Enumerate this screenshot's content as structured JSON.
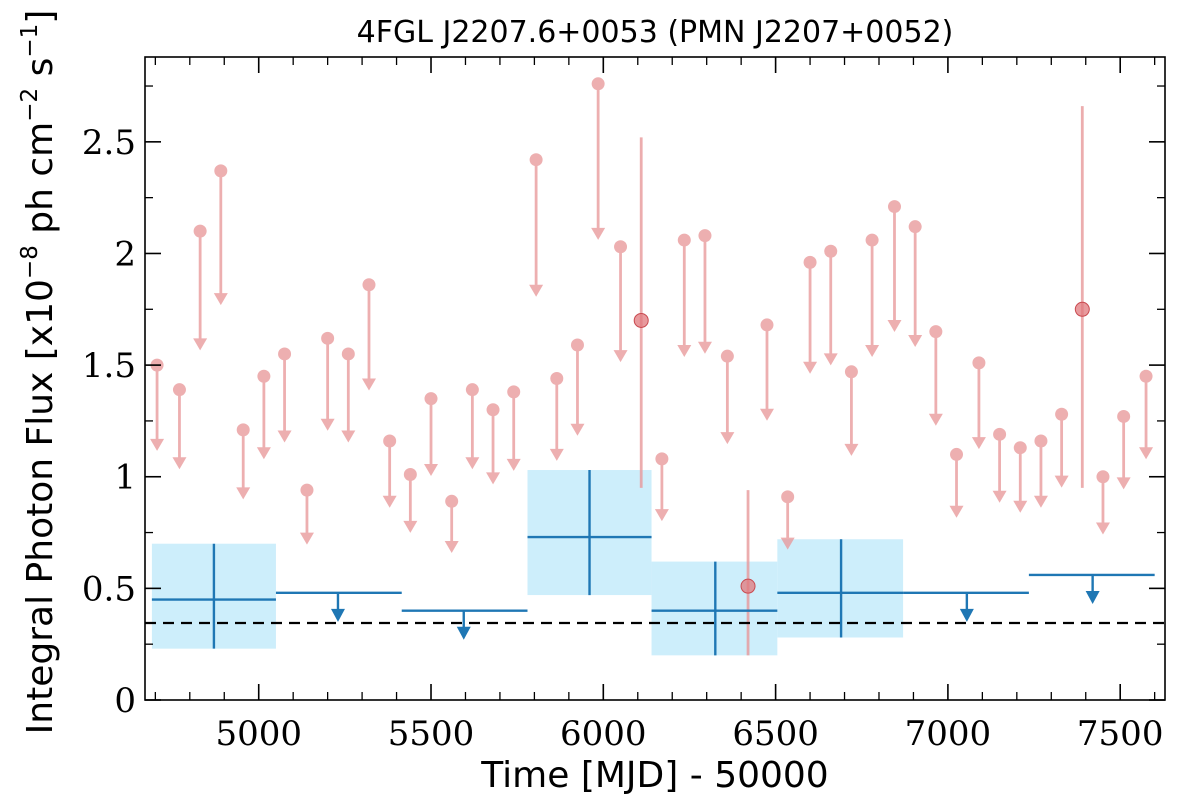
{
  "chart_data": {
    "type": "scatter",
    "title": "4FGL J2207.6+0053 (PMN J2207+0052)",
    "xlabel": "Time [MJD] - 50000",
    "ylabel": "Integral Photon Flux [x10",
    "ylabel_unit_exponent": "−8",
    "ylabel_unit_middle": " ph cm",
    "ylabel_unit_exponent2": "−2",
    "ylabel_unit_s": " s",
    "ylabel_unit_exponent3": "−1",
    "ylabel_unit_close": "]",
    "xlim": [
      4670,
      7630
    ],
    "ylim": [
      0,
      2.88
    ],
    "x_ticks": [
      "5000",
      "5500",
      "6000",
      "6500",
      "7000",
      "7500"
    ],
    "x_tick_values": [
      5000,
      5500,
      6000,
      6500,
      7000,
      7500
    ],
    "y_ticks": [
      "0",
      "0.5",
      "1",
      "1.5",
      "2",
      "2.5"
    ],
    "y_tick_values": [
      0,
      0.5,
      1,
      1.5,
      2,
      2.5
    ],
    "reference_line": {
      "y": 0.345,
      "style": "dashed",
      "color": "#000000"
    },
    "colors": {
      "fine": "#e8999b",
      "coarse": "#1f77b4",
      "band": "#cdeefb"
    },
    "fine_bins": {
      "upper_limits": [
        [
          4705,
          1.5
        ],
        [
          4770,
          1.39
        ],
        [
          4830,
          2.1
        ],
        [
          4890,
          2.37
        ],
        [
          4955,
          1.21
        ],
        [
          5015,
          1.45
        ],
        [
          5075,
          1.55
        ],
        [
          5140,
          0.94
        ],
        [
          5200,
          1.62
        ],
        [
          5260,
          1.55
        ],
        [
          5320,
          1.86
        ],
        [
          5380,
          1.16
        ],
        [
          5440,
          1.01
        ],
        [
          5500,
          1.35
        ],
        [
          5560,
          0.89
        ],
        [
          5620,
          1.39
        ],
        [
          5680,
          1.3
        ],
        [
          5740,
          1.38
        ],
        [
          5805,
          2.42
        ],
        [
          5865,
          1.44
        ],
        [
          5925,
          1.59
        ],
        [
          5985,
          2.76
        ],
        [
          6050,
          2.03
        ],
        [
          6170,
          1.08
        ],
        [
          6235,
          2.06
        ],
        [
          6295,
          2.08
        ],
        [
          6360,
          1.54
        ],
        [
          6475,
          1.68
        ],
        [
          6535,
          0.91
        ],
        [
          6600,
          1.96
        ],
        [
          6660,
          2.01
        ],
        [
          6720,
          1.47
        ],
        [
          6780,
          2.06
        ],
        [
          6845,
          2.21
        ],
        [
          6905,
          2.12
        ],
        [
          6965,
          1.65
        ],
        [
          7025,
          1.1
        ],
        [
          7090,
          1.51
        ],
        [
          7150,
          1.19
        ],
        [
          7210,
          1.13
        ],
        [
          7270,
          1.16
        ],
        [
          7330,
          1.28
        ],
        [
          7450,
          1.0
        ],
        [
          7510,
          1.27
        ],
        [
          7575,
          1.45
        ]
      ],
      "detections": [
        {
          "x": 6110,
          "y": 1.7,
          "ylo": 0.95,
          "yhi": 2.52
        },
        {
          "x": 6420,
          "y": 0.51,
          "ylo": 0.2,
          "yhi": 0.94
        },
        {
          "x": 7390,
          "y": 1.75,
          "ylo": 0.95,
          "yhi": 2.66
        }
      ]
    },
    "coarse_bins": {
      "detections": [
        {
          "x": 4870,
          "xlo": 4690,
          "xhi": 5050,
          "y": 0.45,
          "ylo": 0.23,
          "yhi": 0.7
        },
        {
          "x": 5960,
          "xlo": 5780,
          "xhi": 6140,
          "y": 0.73,
          "ylo": 0.47,
          "yhi": 1.03
        },
        {
          "x": 6325,
          "xlo": 6140,
          "xhi": 6505,
          "y": 0.4,
          "ylo": 0.2,
          "yhi": 0.62
        },
        {
          "x": 6690,
          "xlo": 6505,
          "xhi": 6870,
          "y": 0.48,
          "ylo": 0.28,
          "yhi": 0.72
        }
      ],
      "upper_limits": [
        {
          "x": 5230,
          "xlo": 5050,
          "xhi": 5415,
          "y": 0.48
        },
        {
          "x": 5595,
          "xlo": 5415,
          "xhi": 5780,
          "y": 0.4
        },
        {
          "x": 7055,
          "xlo": 6870,
          "xhi": 7235,
          "y": 0.48
        },
        {
          "x": 7420,
          "xlo": 7235,
          "xhi": 7600,
          "y": 0.56
        }
      ]
    }
  }
}
